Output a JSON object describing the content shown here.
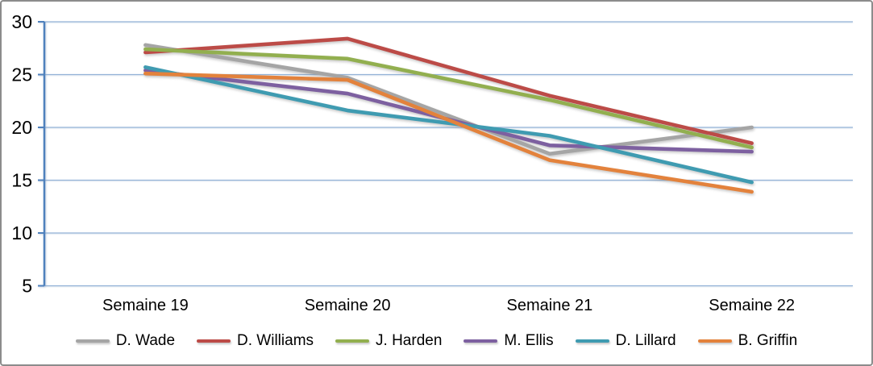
{
  "chart_data": {
    "type": "line",
    "categories": [
      "Semaine 19",
      "Semaine 20",
      "Semaine 21",
      "Semaine 22"
    ],
    "series": [
      {
        "name": "D. Wade",
        "color": "#A5A5A5",
        "values": [
          27.8,
          24.7,
          17.5,
          20.0
        ]
      },
      {
        "name": "D. Williams",
        "color": "#BC4B47",
        "values": [
          27.1,
          28.4,
          23.0,
          18.5
        ]
      },
      {
        "name": "J. Harden",
        "color": "#92AF4F",
        "values": [
          27.4,
          26.5,
          22.6,
          18.1
        ]
      },
      {
        "name": "M. Ellis",
        "color": "#7D60A0",
        "values": [
          25.4,
          23.2,
          18.3,
          17.7
        ]
      },
      {
        "name": "D. Lillard",
        "color": "#3F9BB1",
        "values": [
          25.7,
          21.6,
          19.2,
          14.8
        ]
      },
      {
        "name": "B. Griffin",
        "color": "#E3823C",
        "values": [
          25.1,
          24.5,
          16.9,
          13.9
        ]
      }
    ],
    "title": "",
    "xlabel": "",
    "ylabel": "",
    "ylim": [
      5,
      30
    ],
    "yticks": [
      30,
      25,
      20,
      15,
      10,
      5
    ],
    "grid": true,
    "legend_position": "bottom",
    "axis_color": "#4F81BD",
    "gridline_color": "#94B3D7",
    "text_color": "#000000"
  }
}
